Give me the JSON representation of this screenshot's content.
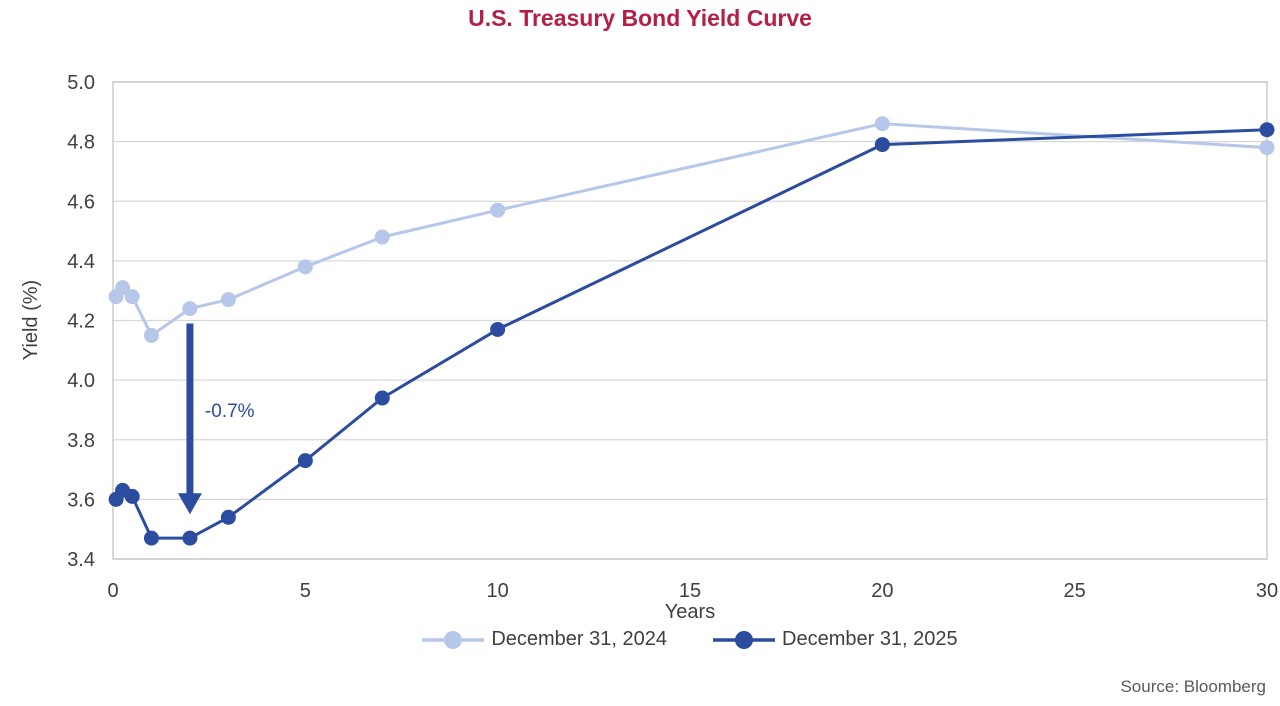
{
  "title": "U.S. Treasury Bond Yield Curve",
  "source": "Source: Bloomberg",
  "axes": {
    "x_title": "Years",
    "y_title": "Yield (%)"
  },
  "colors": {
    "title": "#b42045",
    "series_2024": "#b7c7e9",
    "series_2025": "#2b4c9f",
    "gridline": "#d8d8d8",
    "plot_border": "#c3c3c3",
    "axis_text": "#3f3f3f",
    "source_text": "#595959",
    "annotation": "#2b4c9f"
  },
  "chart_data": {
    "type": "line",
    "title": "U.S. Treasury Bond Yield Curve",
    "xlabel": "Years",
    "ylabel": "Yield (%)",
    "xlim": [
      0,
      30
    ],
    "ylim": [
      3.4,
      5.0
    ],
    "x_ticks": [
      0,
      5,
      10,
      15,
      20,
      25,
      30
    ],
    "x_tick_labels": [
      "0",
      "5",
      "10",
      "15",
      "20",
      "25",
      "30"
    ],
    "y_ticks": [
      3.4,
      3.6,
      3.8,
      4.0,
      4.2,
      4.4,
      4.6,
      4.8,
      5.0
    ],
    "y_tick_labels": [
      "3.4",
      "3.6",
      "3.8",
      "4.0",
      "4.2",
      "4.4",
      "4.6",
      "4.8",
      "5.0"
    ],
    "grid": "horizontal",
    "legend_position": "bottom",
    "x_years": [
      0.08,
      0.25,
      0.5,
      1,
      2,
      3,
      5,
      7,
      10,
      20,
      30
    ],
    "series": [
      {
        "name": "December 31, 2024",
        "color": "#b7c7e9",
        "values": [
          4.28,
          4.31,
          4.28,
          4.15,
          4.24,
          4.27,
          4.38,
          4.48,
          4.57,
          4.86,
          4.78
        ]
      },
      {
        "name": "December 31, 2025",
        "color": "#2b4c9f",
        "values": [
          3.6,
          3.63,
          3.61,
          3.47,
          3.47,
          3.54,
          3.73,
          3.94,
          4.17,
          4.79,
          4.84
        ]
      }
    ],
    "annotation": {
      "label": "-0.7%",
      "x": 2,
      "from_y": 4.19,
      "to_y": 3.55
    }
  }
}
